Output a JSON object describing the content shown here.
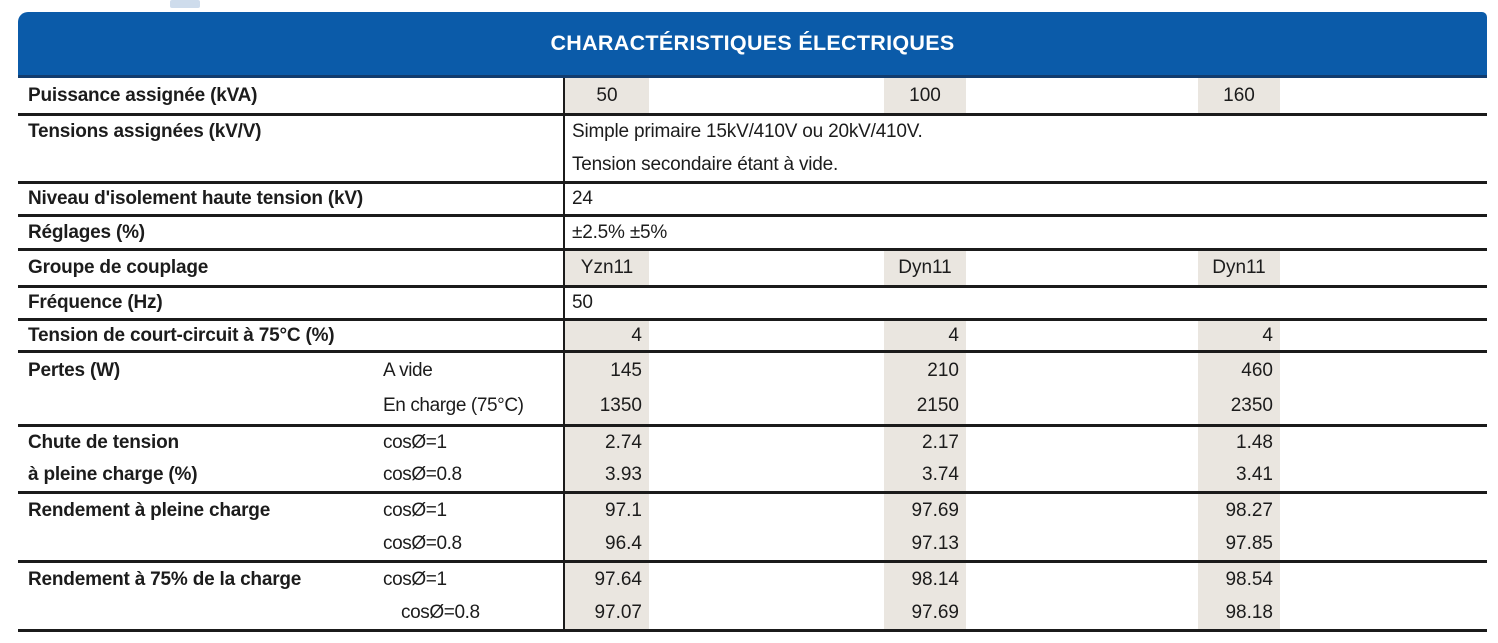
{
  "header": {
    "title": "CHARACTÉRISTIQUES ÉLECTRIQUES"
  },
  "colors": {
    "banner_blue": "#0B5BA9",
    "banner_edge_dark_blue": "#123C6E",
    "cell_shade_beige": "#EAE6E0",
    "rule_black": "#1B1B1B"
  },
  "table": {
    "power_ratings_kva": [
      "50",
      "100",
      "160"
    ],
    "rows": [
      {
        "name": "puissance-assignee",
        "align": "center",
        "bands": [
          {
            "label": "Puissance assignée (kVA)",
            "values": [
              "50",
              "100",
              "160"
            ]
          }
        ]
      },
      {
        "name": "tensions-assignees",
        "bands": [
          {
            "label": "Tensions assignées (kV/V)",
            "text": "Simple primaire 15kV/410V ou 20kV/410V."
          },
          {
            "text": "Tension secondaire étant à vide."
          }
        ]
      },
      {
        "name": "niveau-isolement",
        "bands": [
          {
            "label": "Niveau d'isolement haute tension (kV)",
            "text": "24"
          }
        ]
      },
      {
        "name": "reglages",
        "bands": [
          {
            "label": "Réglages (%)",
            "text": "±2.5% ±5%"
          }
        ]
      },
      {
        "name": "groupe-de-couplage",
        "align": "center",
        "bands": [
          {
            "label": "Groupe de couplage",
            "values": [
              "Yzn11",
              "Dyn11",
              "Dyn11"
            ]
          }
        ]
      },
      {
        "name": "frequence",
        "bands": [
          {
            "label": "Fréquence (Hz)",
            "text": "50"
          }
        ]
      },
      {
        "name": "tension-court-circuit",
        "align": "right",
        "bands": [
          {
            "label": "Tension de court-circuit à 75°C (%)",
            "values": [
              "4",
              "4",
              "4"
            ]
          }
        ]
      },
      {
        "name": "pertes",
        "align": "right",
        "bands": [
          {
            "label": "Pertes (W)",
            "sublabel": "A vide",
            "values": [
              "145",
              "210",
              "460"
            ]
          },
          {
            "sublabel": "En charge (75°C)",
            "values": [
              "1350",
              "2150",
              "2350"
            ]
          }
        ]
      },
      {
        "name": "chute-de-tension",
        "align": "right",
        "bands": [
          {
            "label": "Chute de tension",
            "sublabel": "cosØ=1",
            "values": [
              "2.74",
              "2.17",
              "1.48"
            ]
          },
          {
            "label": "à pleine charge (%)",
            "sublabel": "cosØ=0.8",
            "values": [
              "3.93",
              "3.74",
              "3.41"
            ]
          }
        ]
      },
      {
        "name": "rendement-pleine-charge",
        "align": "right",
        "bands": [
          {
            "label": "Rendement à pleine charge",
            "sublabel": "cosØ=1",
            "values": [
              "97.1",
              "97.69",
              "98.27"
            ]
          },
          {
            "sublabel": "cosØ=0.8",
            "values": [
              "96.4",
              "97.13",
              "97.85"
            ]
          }
        ]
      },
      {
        "name": "rendement-75-charge",
        "align": "right",
        "bands": [
          {
            "label": "Rendement à 75% de la charge",
            "sublabel": "cosØ=1",
            "values": [
              "97.64",
              "98.14",
              "98.54"
            ]
          },
          {
            "sublabel": "cosØ=0.8",
            "sublabel_indent": 18,
            "values": [
              "97.07",
              "97.69",
              "98.18"
            ]
          }
        ]
      }
    ]
  }
}
